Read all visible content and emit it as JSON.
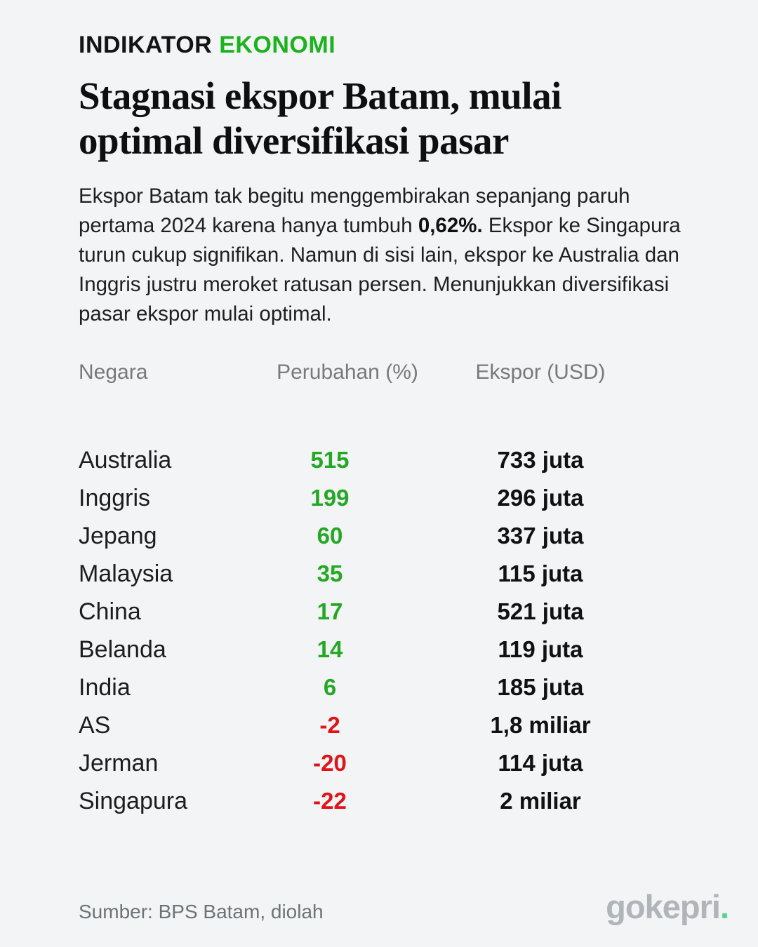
{
  "header": {
    "kicker_black": "INDIKATOR",
    "kicker_green": "EKONOMI",
    "title_line1": "Stagnasi ekspor Batam, mulai",
    "title_line2": "optimal diversifikasi pasar"
  },
  "intro": {
    "part1": "Ekspor Batam tak begitu menggembirakan sepanjang paruh pertama 2024 karena hanya tumbuh ",
    "bold": "0,62%.",
    "part2": " Ekspor ke Singapura turun cukup signifikan. Namun di sisi lain, ekspor ke Australia dan Inggris justru meroket ratusan persen. Menunjukkan diversifikasi pasar ekspor mulai optimal."
  },
  "chart_data": {
    "type": "table",
    "title": "Stagnasi ekspor Batam, mulai optimal diversifikasi pasar",
    "columns": [
      "Negara",
      "Perubahan (%)",
      "Ekspor (USD)"
    ],
    "rows": [
      {
        "country": "Australia",
        "change_pct": 515,
        "export_usd": "733 juta"
      },
      {
        "country": "Inggris",
        "change_pct": 199,
        "export_usd": "296 juta"
      },
      {
        "country": "Jepang",
        "change_pct": 60,
        "export_usd": "337 juta"
      },
      {
        "country": "Malaysia",
        "change_pct": 35,
        "export_usd": "115 juta"
      },
      {
        "country": "China",
        "change_pct": 17,
        "export_usd": "521 juta"
      },
      {
        "country": "Belanda",
        "change_pct": 14,
        "export_usd": "119 juta"
      },
      {
        "country": "India",
        "change_pct": 6,
        "export_usd": "185 juta"
      },
      {
        "country": "AS",
        "change_pct": -2,
        "export_usd": "1,8 miliar"
      },
      {
        "country": "Jerman",
        "change_pct": -20,
        "export_usd": "114 juta"
      },
      {
        "country": "Singapura",
        "change_pct": -22,
        "export_usd": "2 miliar"
      }
    ]
  },
  "footer": {
    "source": "Sumber: BPS Batam, diolah",
    "brand": "gokepri",
    "brand_dot": "."
  },
  "colors": {
    "background": "#f2f4f5",
    "accent_green": "#1db21d",
    "positive": "#24a824",
    "negative": "#e01418",
    "muted_gray": "#77797c",
    "brand_gray": "#b1b5b9",
    "brand_dot_green": "#57d690"
  }
}
